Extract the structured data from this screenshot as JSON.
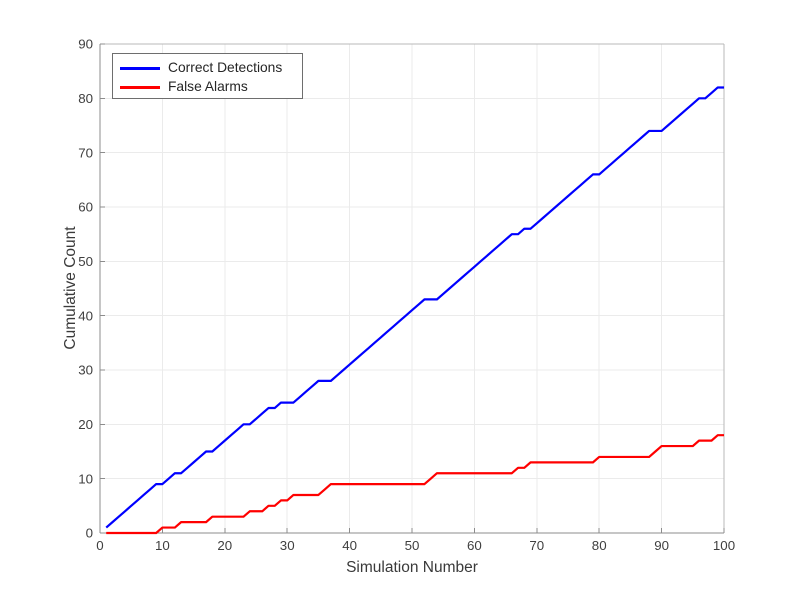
{
  "figure": {
    "background": "#ffffff"
  },
  "style": {
    "grid_color": "#ebebeb",
    "axis_color": "#8c8c8c",
    "axis_color_light": "#b9b9b9",
    "tick_text_color": "#3f3f3f",
    "label_text_color": "#3a3a3a",
    "legend_border_color": "#6e6e6e",
    "legend_text_color": "#262626"
  },
  "chart_data": {
    "type": "line",
    "title": "",
    "xlabel": "Simulation Number",
    "ylabel": "Cumulative Count",
    "xlim": [
      0,
      100
    ],
    "ylim": [
      0,
      90
    ],
    "xticks": [
      0,
      10,
      20,
      30,
      40,
      50,
      60,
      70,
      80,
      90,
      100
    ],
    "yticks": [
      0,
      10,
      20,
      30,
      40,
      50,
      60,
      70,
      80,
      90
    ],
    "grid": true,
    "legend": {
      "position": "top-left",
      "entries": [
        "Correct Detections",
        "False Alarms"
      ]
    },
    "x": {
      "start": 1,
      "end": 100,
      "step": 1
    },
    "series": [
      {
        "name": "Correct Detections",
        "color": "#0000ff",
        "line_width": 2.2,
        "values": [
          1,
          2,
          3,
          4,
          5,
          6,
          7,
          8,
          9,
          9,
          10,
          11,
          11,
          12,
          13,
          14,
          15,
          15,
          16,
          17,
          18,
          19,
          20,
          20,
          21,
          22,
          23,
          23,
          24,
          24,
          24,
          25,
          26,
          27,
          28,
          28,
          28,
          29,
          30,
          31,
          32,
          33,
          34,
          35,
          36,
          37,
          38,
          39,
          40,
          41,
          42,
          43,
          43,
          43,
          44,
          45,
          46,
          47,
          48,
          49,
          50,
          51,
          52,
          53,
          54,
          55,
          55,
          56,
          56,
          57,
          58,
          59,
          60,
          61,
          62,
          63,
          64,
          65,
          66,
          66,
          67,
          68,
          69,
          70,
          71,
          72,
          73,
          74,
          74,
          74,
          75,
          76,
          77,
          78,
          79,
          80,
          80,
          81,
          82,
          82
        ]
      },
      {
        "name": "False Alarms",
        "color": "#ff0000",
        "line_width": 2.2,
        "values": [
          0,
          0,
          0,
          0,
          0,
          0,
          0,
          0,
          0,
          1,
          1,
          1,
          2,
          2,
          2,
          2,
          2,
          3,
          3,
          3,
          3,
          3,
          3,
          4,
          4,
          4,
          5,
          5,
          6,
          6,
          7,
          7,
          7,
          7,
          7,
          8,
          9,
          9,
          9,
          9,
          9,
          9,
          9,
          9,
          9,
          9,
          9,
          9,
          9,
          9,
          9,
          9,
          10,
          11,
          11,
          11,
          11,
          11,
          11,
          11,
          11,
          11,
          11,
          11,
          11,
          11,
          12,
          12,
          13,
          13,
          13,
          13,
          13,
          13,
          13,
          13,
          13,
          13,
          13,
          14,
          14,
          14,
          14,
          14,
          14,
          14,
          14,
          14,
          15,
          16,
          16,
          16,
          16,
          16,
          16,
          17,
          17,
          17,
          18,
          18
        ]
      }
    ]
  }
}
